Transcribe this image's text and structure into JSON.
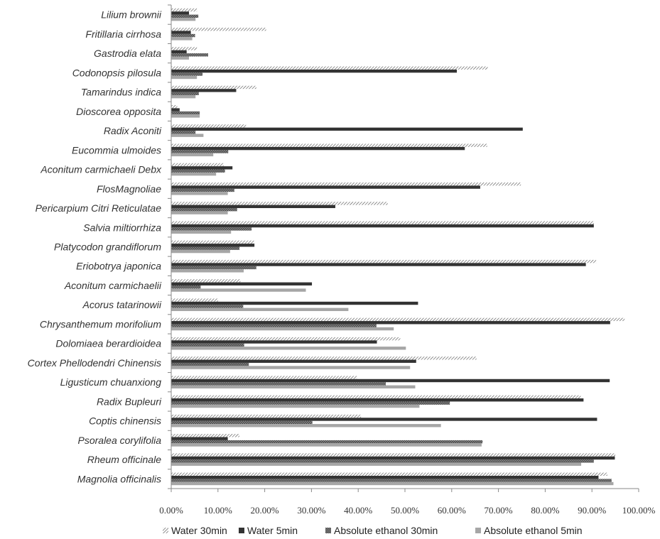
{
  "chart_data": {
    "type": "bar",
    "orientation": "horizontal",
    "categories": [
      "Lilium brownii",
      "Fritillaria cirrhosa",
      "Gastrodia elata",
      "Codonopsis pilosula",
      "Tamarindus indica",
      "Dioscorea opposita",
      "Radix Aconiti",
      "Eucommia ulmoides",
      "Aconitum carmichaeli Debx",
      "FlosMagnoliae",
      "Pericarpium Citri Reticulatae",
      "Salvia miltiorrhiza",
      "Platycodon grandiflorum",
      "Eriobotrya japonica",
      "Aconitum carmichaelii",
      "Acorus tatarinowii",
      "Chrysanthemum morifolium",
      "Dolomiaea berardioidea",
      "Cortex Phellodendri Chinensis",
      "Ligusticum chuanxiong",
      "Radix Bupleuri",
      "Coptis chinensis",
      "Psoralea corylifolia",
      "Rheum officinale",
      "Magnolia officinalis"
    ],
    "series": [
      {
        "name": "Water 30min",
        "color": "#555555",
        "pattern": "diagonal-hatch",
        "values": [
          5.5,
          20.3,
          5.5,
          67.7,
          18.2,
          1.3,
          16.0,
          67.6,
          11.2,
          74.8,
          46.3,
          90.4,
          17.7,
          90.9,
          14.8,
          10.0,
          97.0,
          49.0,
          65.3,
          39.7,
          87.6,
          40.6,
          14.6,
          95.0,
          93.3
        ]
      },
      {
        "name": "Water 5min",
        "color": "#333333",
        "pattern": "solid",
        "values": [
          3.8,
          4.2,
          3.3,
          61.1,
          13.9,
          1.8,
          75.2,
          62.8,
          13.1,
          66.1,
          35.1,
          90.4,
          17.8,
          88.7,
          30.1,
          52.8,
          93.9,
          44.0,
          52.4,
          93.8,
          88.2,
          91.1,
          12.1,
          94.9,
          91.4
        ]
      },
      {
        "name": "Absolute ethanol 30min",
        "color": "#666666",
        "pattern": "cross-hatch",
        "values": [
          5.8,
          5.1,
          7.9,
          6.7,
          5.9,
          6.1,
          5.2,
          12.2,
          11.5,
          13.5,
          14.1,
          17.2,
          14.6,
          18.2,
          6.3,
          15.4,
          43.9,
          15.6,
          16.6,
          45.9,
          59.6,
          30.2,
          66.6,
          90.4,
          94.2
        ]
      },
      {
        "name": "Absolute ethanol 5min",
        "color": "#a6a6a6",
        "pattern": "solid",
        "values": [
          5.2,
          4.5,
          3.8,
          5.5,
          5.2,
          6.1,
          6.9,
          9.0,
          9.6,
          12.1,
          12.1,
          12.8,
          12.6,
          15.5,
          28.8,
          37.9,
          47.6,
          50.2,
          51.1,
          52.2,
          53.1,
          57.7,
          66.4,
          87.7,
          94.6
        ]
      }
    ],
    "x_ticks": [
      "0.00%",
      "10.00%",
      "20.00%",
      "30.00%",
      "40.00%",
      "50.00%",
      "60.00%",
      "70.00%",
      "80.00%",
      "90.00%",
      "100.00%"
    ],
    "xlim": [
      0,
      100
    ],
    "title": "",
    "xlabel": "",
    "ylabel": "",
    "grid": false,
    "legend_position": "bottom"
  }
}
